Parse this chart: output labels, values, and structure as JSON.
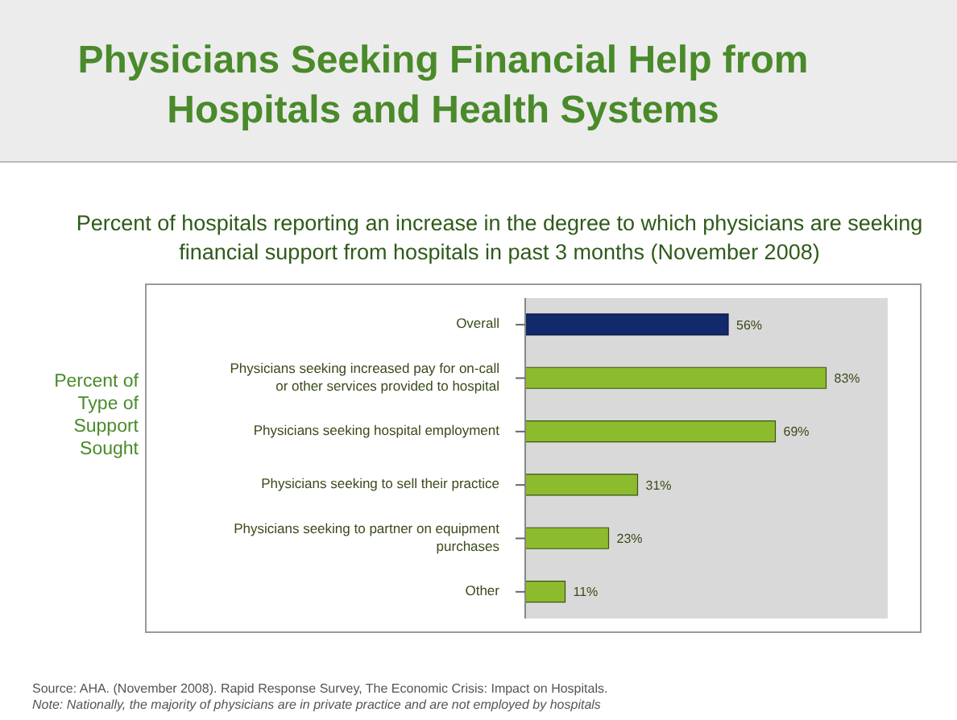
{
  "chart_data": {
    "type": "bar",
    "orientation": "horizontal",
    "title": "Physicians Seeking Financial Help from Hospitals and Health Systems",
    "subtitle": "Percent of hospitals reporting an increase in the degree to which physicians are seeking financial support from hospitals in past 3 months (November 2008)",
    "ylabel": "Percent of Type of Support Sought",
    "categories": [
      "Overall",
      "Physicians seeking increased pay for on-call or other services provided to hospital",
      "Physicians seeking hospital employment",
      "Physicians seeking to sell their practice",
      "Physicians seeking to partner on equipment purchases",
      "Other"
    ],
    "values": [
      56,
      83,
      69,
      31,
      23,
      11
    ],
    "value_labels": [
      "56%",
      "83%",
      "69%",
      "31%",
      "23%",
      "11%"
    ],
    "colors": [
      "#12296b",
      "#8dbb2e",
      "#8dbb2e",
      "#8dbb2e",
      "#8dbb2e",
      "#8dbb2e"
    ],
    "xlim": [
      0,
      100
    ],
    "tick_labels": "y",
    "grid": false,
    "legend": false,
    "annotations": [
      "Source:  AHA. (November 2008). Rapid Response Survey, The Economic Crisis:  Impact on Hospitals.",
      "Note:  Nationally, the majority of physicians are in private practice and are not employed by hospitals"
    ]
  }
}
